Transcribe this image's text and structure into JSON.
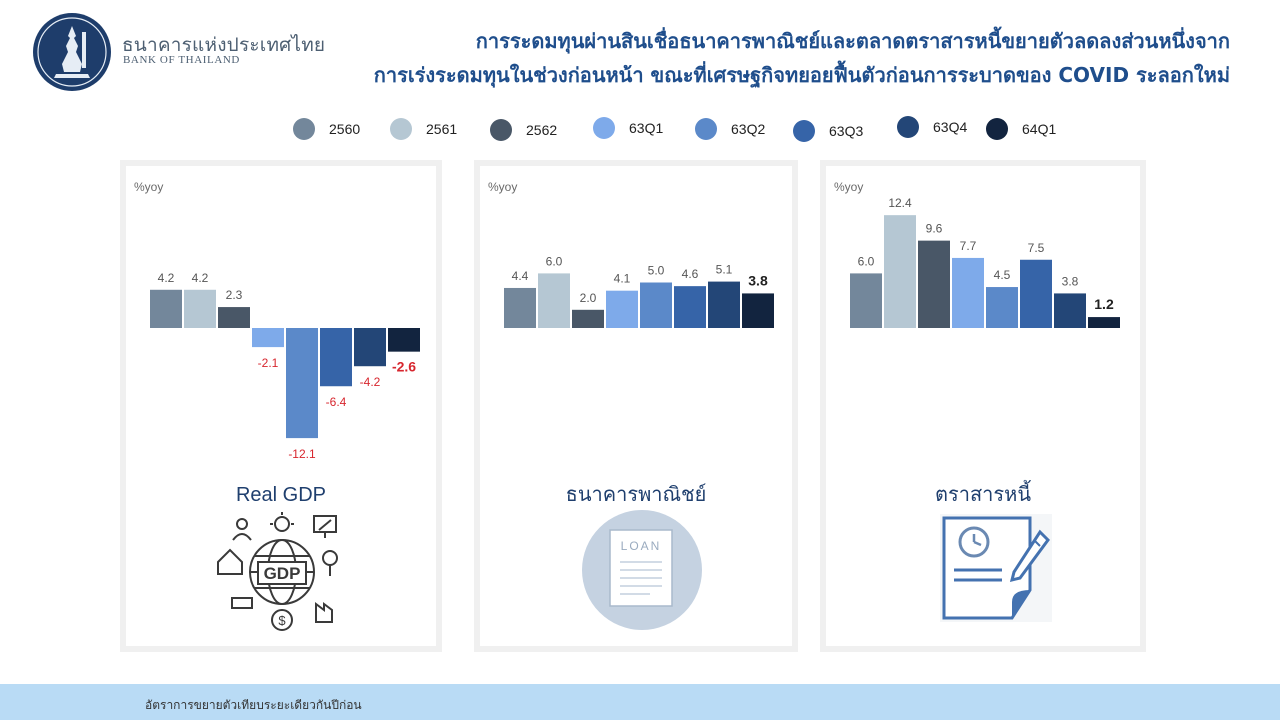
{
  "header": {
    "org_name_th": "ธนาคารแห่งประเทศไทย",
    "org_name_en": "BANK OF THAILAND",
    "title_line1": "การระดมทุนผ่านสินเชื่อธนาคารพาณิชย์และตลาดตราสารหนี้ขยายตัวลดลงส่วนหนึ่งจาก",
    "title_line2": "การเร่งระดมทุนในช่วงก่อนหน้า ขณะที่เศรษฐกิจทยอยฟื้นตัวก่อนการระบาดของ COVID ระลอกใหม่"
  },
  "legend": [
    {
      "label": "2560",
      "color": "#73879b"
    },
    {
      "label": "2561",
      "color": "#b5c7d3"
    },
    {
      "label": "2562",
      "color": "#495767"
    },
    {
      "label": "63Q1",
      "color": "#7eaaea"
    },
    {
      "label": "63Q2",
      "color": "#5b89c9"
    },
    {
      "label": "63Q3",
      "color": "#3664a8"
    },
    {
      "label": "63Q4",
      "color": "#234677"
    },
    {
      "label": "64Q1",
      "color": "#12243f"
    }
  ],
  "chart_data": [
    {
      "type": "bar",
      "title": "Real GDP",
      "ylabel": "%yoy",
      "categories": [
        "2560",
        "2561",
        "2562",
        "63Q1",
        "63Q2",
        "63Q3",
        "63Q4",
        "64Q1"
      ],
      "values": [
        4.2,
        4.2,
        2.3,
        -2.1,
        -12.1,
        -6.4,
        -4.2,
        -2.6
      ],
      "labels": [
        "4.2",
        "4.2",
        "2.3",
        "-2.1",
        "-12.1",
        "-6.4",
        "-4.2",
        "-2.6"
      ],
      "label_colors": [
        "#555555",
        "#555555",
        "#555555",
        "#d7262e",
        "#d7262e",
        "#d7262e",
        "#d7262e",
        "#d7262e"
      ]
    },
    {
      "type": "bar",
      "title": "ธนาคารพาณิชย์",
      "ylabel": "%yoy",
      "categories": [
        "2560",
        "2561",
        "2562",
        "63Q1",
        "63Q2",
        "63Q3",
        "63Q4",
        "64Q1"
      ],
      "values": [
        4.4,
        6.0,
        2.0,
        4.1,
        5.0,
        4.6,
        5.1,
        3.8
      ],
      "labels": [
        "4.4",
        "6.0",
        "2.0",
        "4.1",
        "5.0",
        "4.6",
        "5.1",
        "3.8"
      ],
      "label_colors": [
        "#555555",
        "#555555",
        "#555555",
        "#555555",
        "#555555",
        "#555555",
        "#555555",
        "#222222"
      ]
    },
    {
      "type": "bar",
      "title": "ตราสารหนี้",
      "ylabel": "%yoy",
      "categories": [
        "2560",
        "2561",
        "2562",
        "63Q1",
        "63Q2",
        "63Q3",
        "63Q4",
        "64Q1"
      ],
      "values": [
        6.0,
        12.4,
        9.6,
        7.7,
        4.5,
        7.5,
        3.8,
        1.2
      ],
      "labels": [
        "6.0",
        "12.4",
        "9.6",
        "7.7",
        "4.5",
        "7.5",
        "3.8",
        "1.2"
      ],
      "label_colors": [
        "#555555",
        "#555555",
        "#555555",
        "#555555",
        "#555555",
        "#555555",
        "#555555",
        "#222222"
      ]
    }
  ],
  "loan_icon_text": "LOAN",
  "gdp_icon_text": "GDP",
  "footer": {
    "note": "อัตราการขยายตัวเทียบระยะเดียวกันปีก่อน"
  }
}
